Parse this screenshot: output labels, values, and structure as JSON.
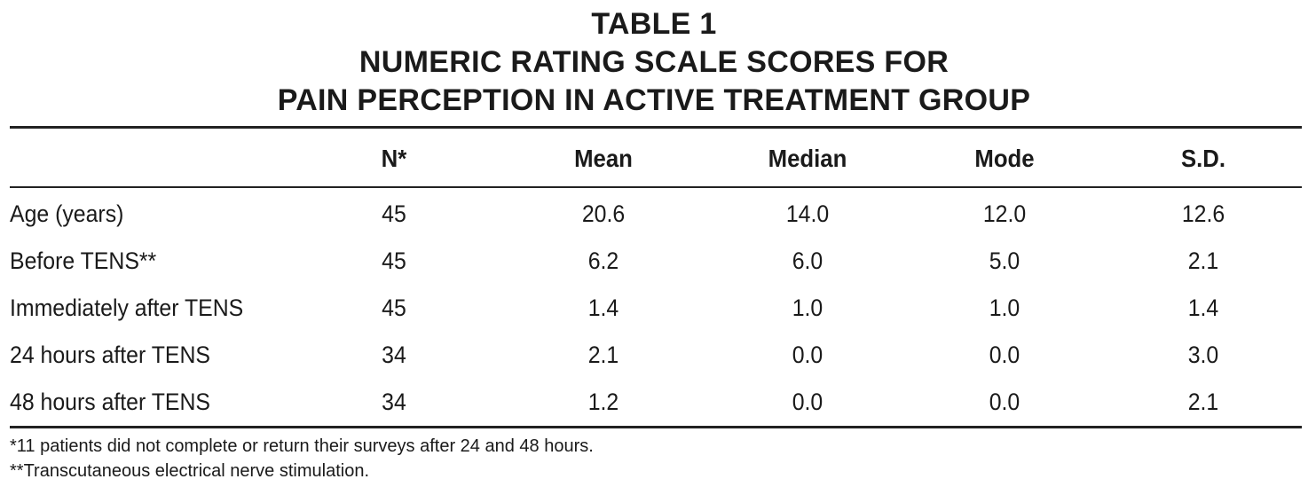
{
  "table": {
    "title_lines": [
      "TABLE 1",
      "NUMERIC RATING SCALE SCORES FOR",
      "PAIN PERCEPTION IN ACTIVE TREATMENT GROUP"
    ],
    "columns": [
      "",
      "N*",
      "Mean",
      "Median",
      "Mode",
      "S.D."
    ],
    "rows": [
      {
        "label": "Age (years)",
        "n": "45",
        "mean": "20.6",
        "median": "14.0",
        "mode": "12.0",
        "sd": "12.6"
      },
      {
        "label": "Before TENS**",
        "n": "45",
        "mean": "6.2",
        "median": "6.0",
        "mode": "5.0",
        "sd": "2.1"
      },
      {
        "label": "Immediately after TENS",
        "n": "45",
        "mean": "1.4",
        "median": "1.0",
        "mode": "1.0",
        "sd": "1.4"
      },
      {
        "label": "24 hours after TENS",
        "n": "34",
        "mean": "2.1",
        "median": "0.0",
        "mode": "0.0",
        "sd": "3.0"
      },
      {
        "label": "48 hours after TENS",
        "n": "34",
        "mean": "1.2",
        "median": "0.0",
        "mode": "0.0",
        "sd": "2.1"
      }
    ],
    "footnotes": [
      "*11 patients did not complete or return their surveys after 24 and 48 hours.",
      "**Transcutaneous electrical nerve stimulation."
    ]
  },
  "colors": {
    "text": "#1a1a1a",
    "rule": "#222222",
    "background": "#ffffff"
  }
}
